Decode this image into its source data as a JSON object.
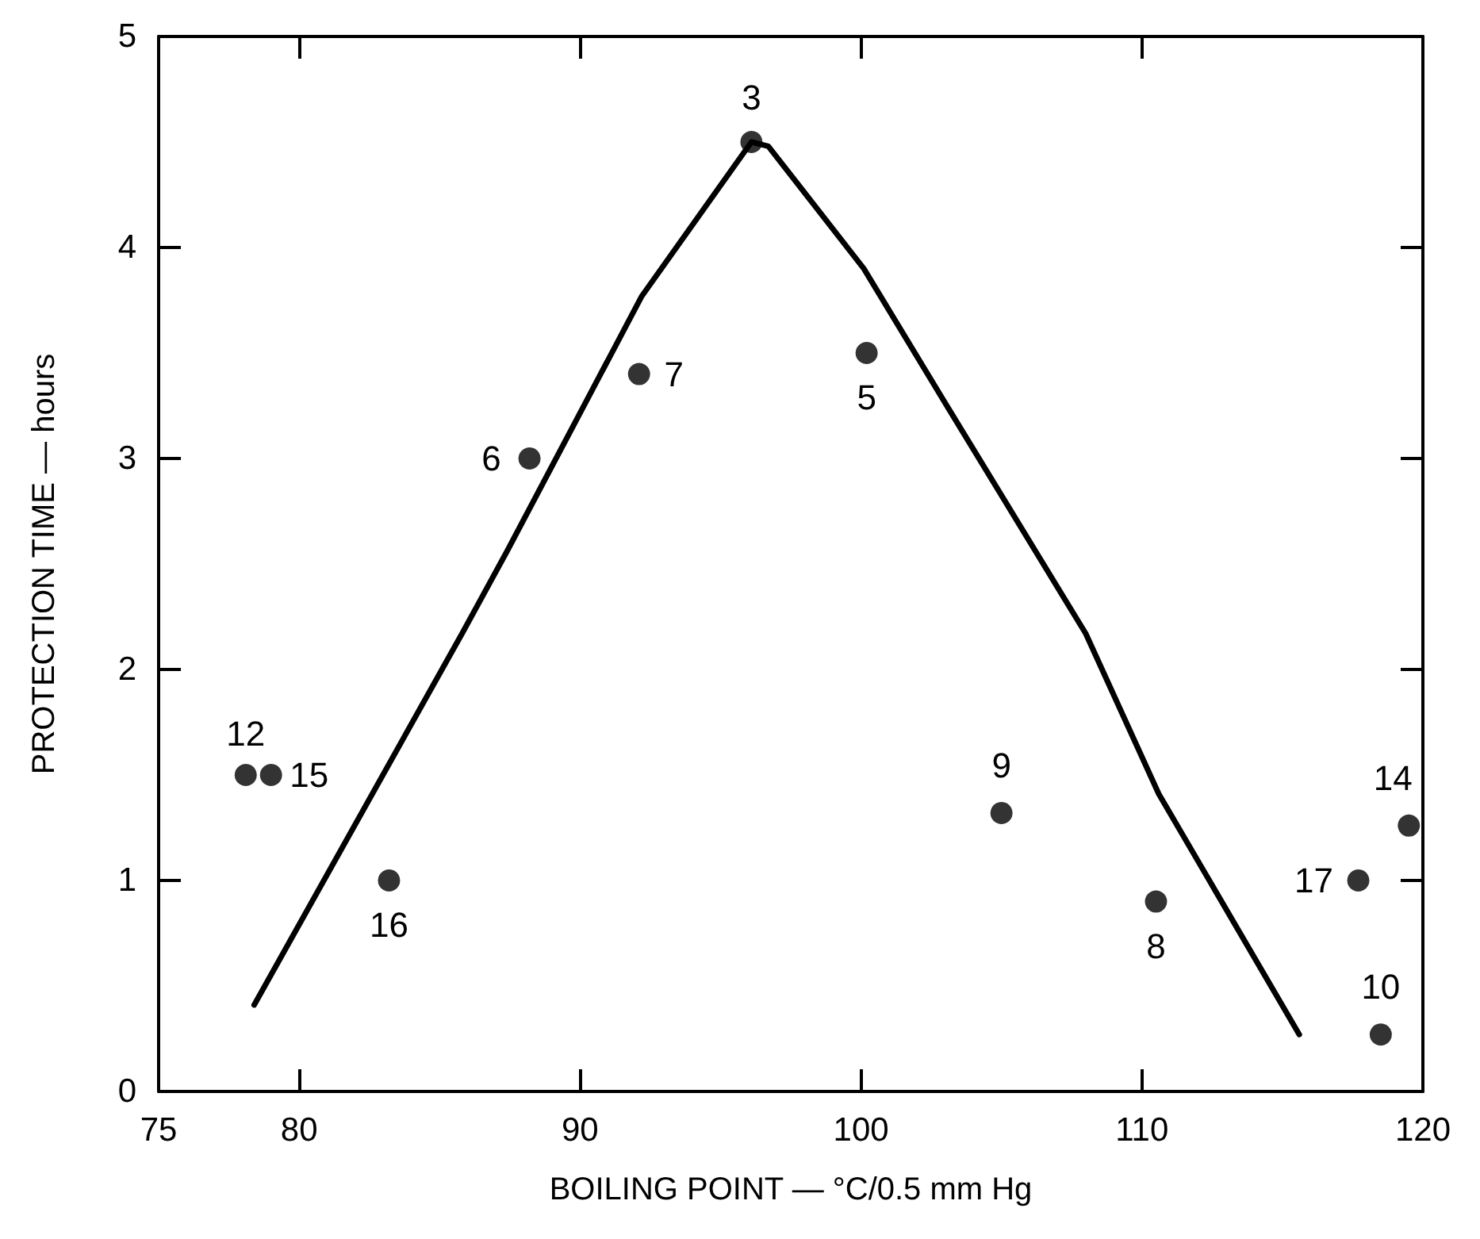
{
  "chart_data": {
    "type": "scatter",
    "xlabel": "BOILING POINT — °C/0.5 mm Hg",
    "ylabel": "PROTECTION TIME — hours",
    "xlim": [
      75,
      120
    ],
    "xticks": [
      75,
      80,
      90,
      100,
      110,
      120
    ],
    "ylim": [
      0,
      5
    ],
    "yticks": [
      0,
      1,
      2,
      3,
      4,
      5
    ],
    "grid": false,
    "marker": "circle",
    "series": [
      {
        "color": "#000000",
        "x": [
          78.1,
          79.0,
          83.2,
          88.2,
          92.1,
          96.1,
          100.2,
          105.0,
          110.5,
          117.7,
          119.5,
          118.5
        ],
        "values": [
          1.5,
          1.5,
          1.0,
          3.0,
          3.4,
          4.5,
          3.5,
          1.32,
          0.9,
          1.0,
          1.26,
          0.27
        ]
      },
      {
        "type": "line",
        "color": "#000000",
        "marker": "none",
        "line_style": "solid",
        "x": [
          78.4,
          85.8,
          87.4,
          92.2,
          96.1,
          96.7,
          100.1,
          103.1,
          108.0,
          110.6,
          115.6
        ],
        "values": [
          0.41,
          2.17,
          2.56,
          3.77,
          4.5,
          4.48,
          3.9,
          3.24,
          2.17,
          1.41,
          0.27
        ]
      }
    ],
    "annotations": [
      {
        "text": "12",
        "x": 78.1,
        "y": 1.5
      },
      {
        "text": "15",
        "x": 79.0,
        "y": 1.5
      },
      {
        "text": "16",
        "x": 83.2,
        "y": 1.0
      },
      {
        "text": "6",
        "x": 88.2,
        "y": 3.0
      },
      {
        "text": "7",
        "x": 92.1,
        "y": 3.4
      },
      {
        "text": "3",
        "x": 96.1,
        "y": 4.5
      },
      {
        "text": "5",
        "x": 100.2,
        "y": 3.5
      },
      {
        "text": "9",
        "x": 105.0,
        "y": 1.32
      },
      {
        "text": "8",
        "x": 110.5,
        "y": 0.9
      },
      {
        "text": "17",
        "x": 117.7,
        "y": 1.0
      },
      {
        "text": "14",
        "x": 119.5,
        "y": 1.26
      },
      {
        "text": "10",
        "x": 118.5,
        "y": 0.27
      }
    ]
  }
}
